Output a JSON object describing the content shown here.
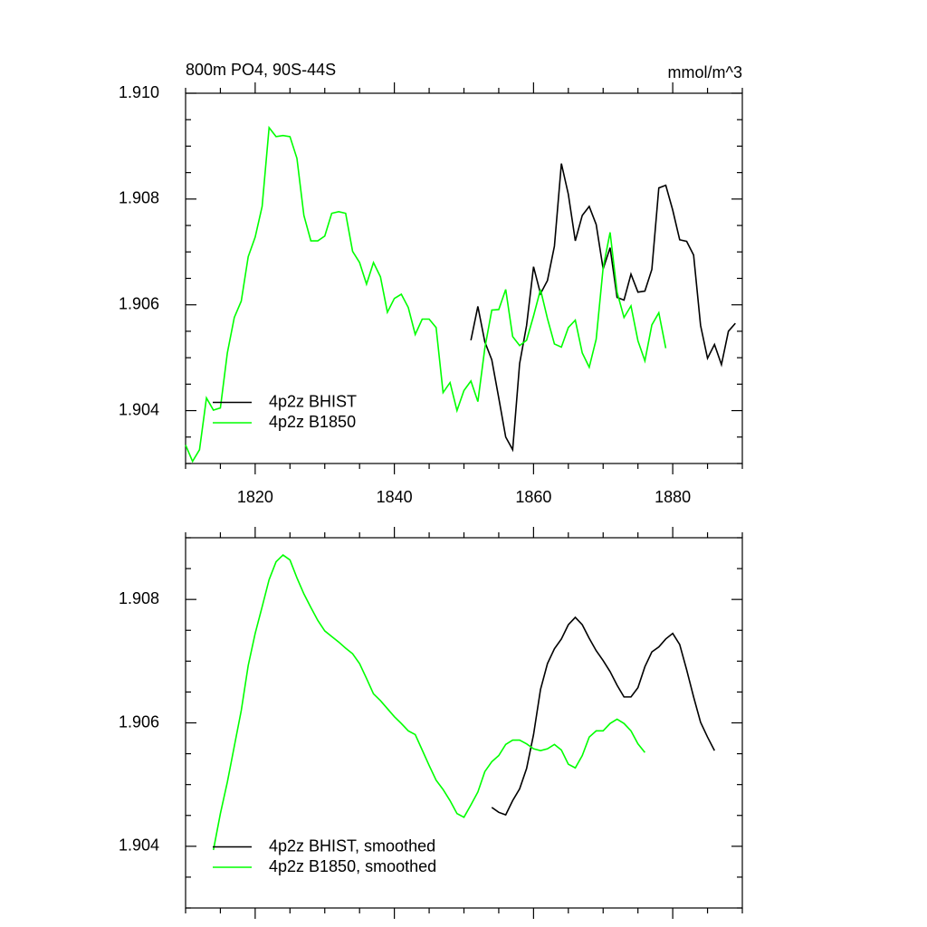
{
  "chart_data": [
    {
      "type": "line",
      "title": "800m PO4, 90S-44S",
      "units": "mmol/m^3",
      "xlim": [
        1810,
        1890
      ],
      "xticks": [
        1820,
        1840,
        1860,
        1880
      ],
      "ylim": [
        1.903,
        1.91
      ],
      "yticks": [
        1.904,
        1.906,
        1.908,
        {
          "value": 1.91,
          "label": "1.910"
        }
      ],
      "legend": "lower left",
      "series": [
        {
          "name": "4p2z BHIST",
          "color": "#000000",
          "x": [
            1851,
            1852,
            1853,
            1854,
            1855,
            1856,
            1857,
            1858,
            1859,
            1860,
            1861,
            1862,
            1863,
            1864,
            1865,
            1866,
            1867,
            1868,
            1869,
            1870,
            1871,
            1872,
            1873,
            1874,
            1875,
            1876,
            1877,
            1878,
            1879,
            1880,
            1881,
            1882,
            1883,
            1884,
            1885,
            1886,
            1887,
            1888,
            1889
          ],
          "values": [
            1.90533,
            1.90597,
            1.9053,
            1.90496,
            1.90424,
            1.9035,
            1.90326,
            1.90489,
            1.90561,
            1.90672,
            1.90621,
            1.90646,
            1.90711,
            1.90867,
            1.90809,
            1.90721,
            1.90769,
            1.90786,
            1.90752,
            1.90668,
            1.90708,
            1.90614,
            1.90609,
            1.90658,
            1.90624,
            1.90626,
            1.90667,
            1.90821,
            1.90826,
            1.90779,
            1.90723,
            1.9072,
            1.90694,
            1.90561,
            1.90499,
            1.90525,
            1.90487,
            1.9055,
            1.90565
          ]
        },
        {
          "name": "4p2z B1850",
          "color": "#00ff00",
          "x": [
            1810,
            1811,
            1812,
            1813,
            1814,
            1815,
            1816,
            1817,
            1818,
            1819,
            1820,
            1821,
            1822,
            1823,
            1824,
            1825,
            1826,
            1827,
            1828,
            1829,
            1830,
            1831,
            1832,
            1833,
            1834,
            1835,
            1836,
            1837,
            1838,
            1839,
            1840,
            1841,
            1842,
            1843,
            1844,
            1845,
            1846,
            1847,
            1848,
            1849,
            1850,
            1851,
            1852,
            1853,
            1854,
            1855,
            1856,
            1857,
            1858,
            1859,
            1860,
            1861,
            1862,
            1863,
            1864,
            1865,
            1866,
            1867,
            1868,
            1869,
            1870,
            1871,
            1872,
            1873,
            1874,
            1875,
            1876,
            1877,
            1878,
            1879
          ],
          "values": [
            1.90335,
            1.90304,
            1.90326,
            1.90424,
            1.90401,
            1.90405,
            1.90509,
            1.90576,
            1.90607,
            1.90691,
            1.90728,
            1.90786,
            1.90935,
            1.90918,
            1.9092,
            1.90918,
            1.90877,
            1.90769,
            1.90721,
            1.90721,
            1.9073,
            1.90773,
            1.90776,
            1.90773,
            1.90701,
            1.9068,
            1.90639,
            1.9068,
            1.90653,
            1.90586,
            1.90612,
            1.9062,
            1.90595,
            1.90544,
            1.90573,
            1.90573,
            1.90557,
            1.90434,
            1.90453,
            1.904,
            1.90438,
            1.90456,
            1.90417,
            1.90518,
            1.9059,
            1.90591,
            1.90629,
            1.9054,
            1.90523,
            1.90533,
            1.90579,
            1.90629,
            1.90574,
            1.90526,
            1.9052,
            1.90557,
            1.90571,
            1.90509,
            1.90482,
            1.90535,
            1.9067,
            1.90737,
            1.90624,
            1.90576,
            1.90598,
            1.90532,
            1.90494,
            1.90562,
            1.90585,
            1.90518
          ]
        }
      ]
    },
    {
      "type": "line",
      "xlim": [
        1810,
        1890
      ],
      "xticks": [
        1820,
        1840,
        1860,
        1880
      ],
      "ylim": [
        1.903,
        1.909
      ],
      "yticks": [
        1.904,
        1.906,
        1.908
      ],
      "legend": "lower left",
      "series": [
        {
          "name": "4p2z BHIST, smoothed",
          "color": "#000000",
          "x": [
            1854,
            1855,
            1856,
            1857,
            1858,
            1859,
            1860,
            1861,
            1862,
            1863,
            1864,
            1865,
            1866,
            1867,
            1868,
            1869,
            1870,
            1871,
            1872,
            1873,
            1874,
            1875,
            1876,
            1877,
            1878,
            1879,
            1880,
            1881,
            1882,
            1883,
            1884,
            1885,
            1886
          ],
          "values": [
            1.90463,
            1.90455,
            1.90451,
            1.90474,
            1.90493,
            1.90526,
            1.90581,
            1.90654,
            1.90696,
            1.9072,
            1.90736,
            1.90759,
            1.90771,
            1.90759,
            1.90737,
            1.90717,
            1.90701,
            1.90683,
            1.90661,
            1.90642,
            1.90642,
            1.90657,
            1.90691,
            1.90715,
            1.90723,
            1.90736,
            1.90745,
            1.90727,
            1.90686,
            1.90642,
            1.90601,
            1.90577,
            1.90555
          ]
        },
        {
          "name": "4p2z B1850, smoothed",
          "color": "#00ff00",
          "x": [
            1814,
            1815,
            1816,
            1817,
            1818,
            1819,
            1820,
            1821,
            1822,
            1823,
            1824,
            1825,
            1826,
            1827,
            1828,
            1829,
            1830,
            1831,
            1832,
            1833,
            1834,
            1835,
            1836,
            1837,
            1838,
            1839,
            1840,
            1841,
            1842,
            1843,
            1844,
            1845,
            1846,
            1847,
            1848,
            1849,
            1850,
            1851,
            1852,
            1853,
            1854,
            1855,
            1856,
            1857,
            1858,
            1859,
            1860,
            1861,
            1862,
            1863,
            1864,
            1865,
            1866,
            1867,
            1868,
            1869,
            1870,
            1871,
            1872,
            1873,
            1874,
            1875,
            1876
          ],
          "values": [
            1.90394,
            1.90453,
            1.90504,
            1.90562,
            1.9062,
            1.90693,
            1.90745,
            1.90788,
            1.90832,
            1.90861,
            1.90872,
            1.90864,
            1.90835,
            1.90809,
            1.90787,
            1.90766,
            1.90749,
            1.9074,
            1.90731,
            1.90721,
            1.90712,
            1.90696,
            1.90672,
            1.90647,
            1.90636,
            1.90623,
            1.9061,
            1.90599,
            1.90587,
            1.90581,
            1.90556,
            1.90531,
            1.90507,
            1.90492,
            1.90474,
            1.90453,
            1.90447,
            1.90467,
            1.90488,
            1.90521,
            1.90537,
            1.90547,
            1.90565,
            1.90572,
            1.90572,
            1.90566,
            1.90558,
            1.90555,
            1.90558,
            1.90565,
            1.90556,
            1.90533,
            1.90527,
            1.90547,
            1.90577,
            1.90587,
            1.90587,
            1.90599,
            1.90606,
            1.90599,
            1.90587,
            1.90566,
            1.90552
          ]
        }
      ]
    }
  ]
}
